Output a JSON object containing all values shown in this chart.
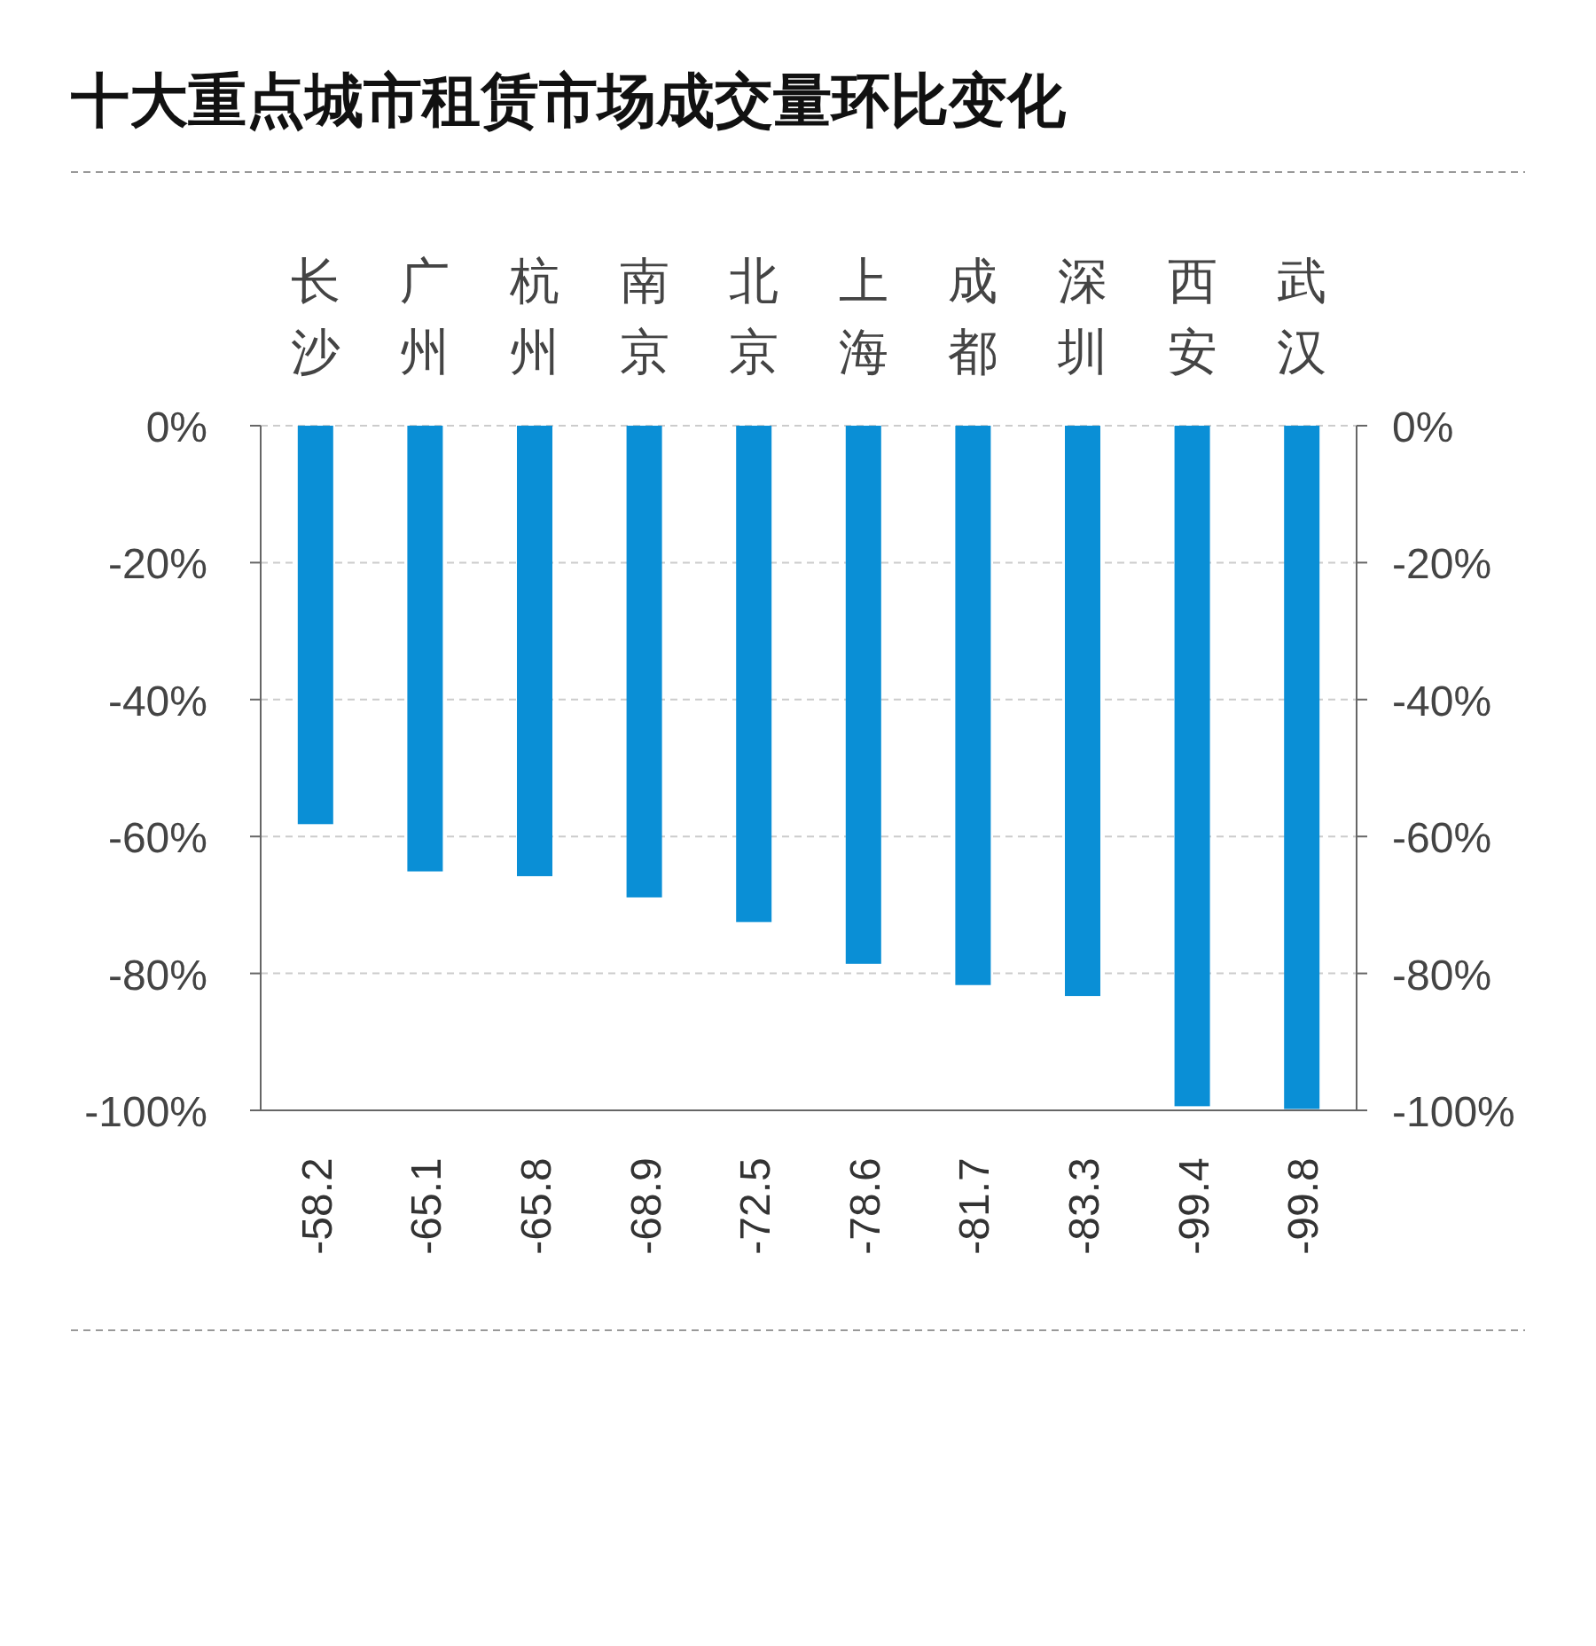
{
  "chart_data": {
    "type": "bar",
    "title": "十大重点城市租赁市场成交量环比变化",
    "categories": [
      "长沙",
      "广州",
      "杭州",
      "南京",
      "北京",
      "上海",
      "成都",
      "深圳",
      "西安",
      "武汉"
    ],
    "values": [
      -58.2,
      -65.1,
      -65.8,
      -68.9,
      -72.5,
      -78.6,
      -81.7,
      -83.3,
      -99.4,
      -99.8
    ],
    "color": "#0a8fd6",
    "ylim": [
      -100,
      0
    ],
    "yticks": [
      {
        "value": 0,
        "label": "0%"
      },
      {
        "value": -20,
        "label": "-20%"
      },
      {
        "value": -40,
        "label": "-40%"
      },
      {
        "value": -60,
        "label": "-60%"
      },
      {
        "value": -80,
        "label": "-80%"
      },
      {
        "value": -100,
        "label": "-100%"
      }
    ],
    "y2lim": [
      -100,
      0
    ],
    "y2ticks": [
      {
        "value": 0,
        "label": "0%"
      },
      {
        "value": -20,
        "label": "-20%"
      },
      {
        "value": -40,
        "label": "-40%"
      },
      {
        "value": -60,
        "label": "-60%"
      },
      {
        "value": -80,
        "label": "-80%"
      },
      {
        "value": -100,
        "label": "-100%"
      }
    ],
    "grid": "y",
    "data_labels": true
  }
}
